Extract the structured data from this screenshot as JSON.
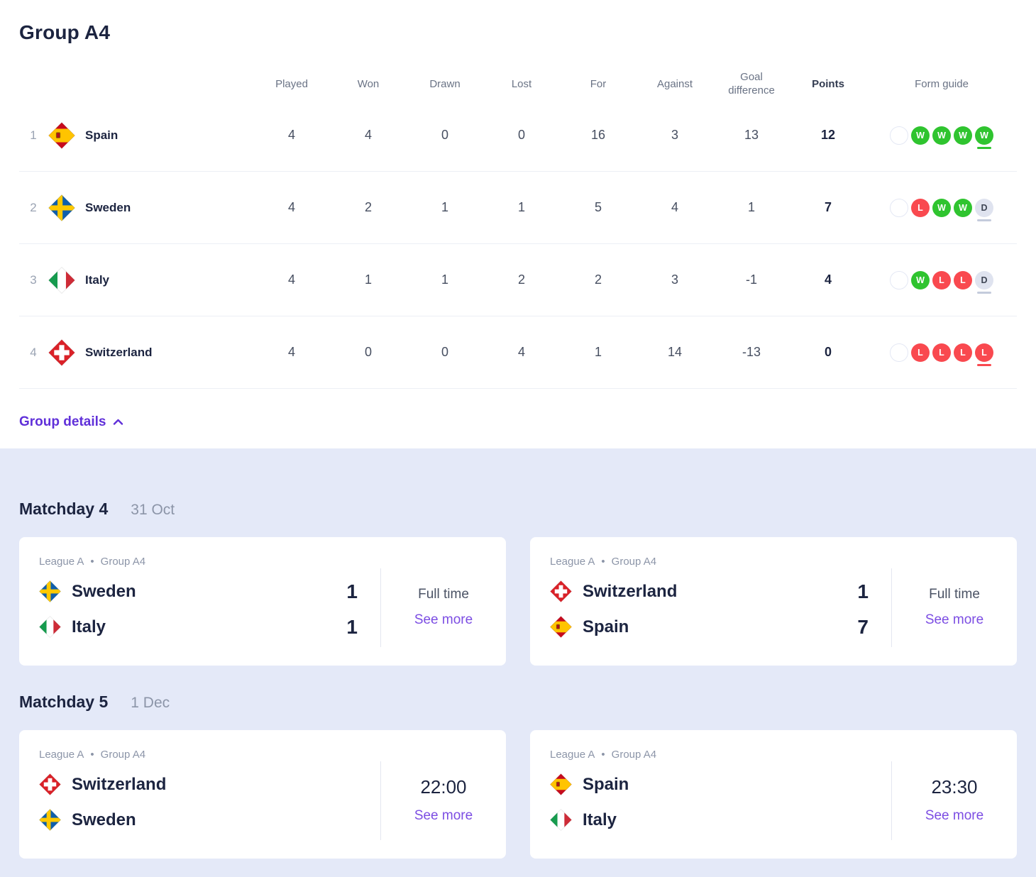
{
  "colors": {
    "navy": "#1C2440",
    "hdr-gray": "#6A7385",
    "stat-gray": "#464E60",
    "rank-gray": "#9AA3B3",
    "date-gray": "#8C95A8",
    "crumb-gray": "#8C95A8",
    "status-gray": "#4A5264",
    "row-line": "#ECEFF5",
    "card-divider": "#E3E6F0",
    "section-bg": "#E4E9F8",
    "purple": "#6030D9",
    "link-purple": "#7C4DE3",
    "win": "#2FC42F",
    "loss": "#F9494F",
    "draw-bg": "#DFE3EF",
    "draw-text": "#3E4554",
    "draw-underline": "#C4CBDC",
    "empty-border": "#E4E8F4"
  },
  "separator": "•",
  "standings": {
    "title": "Group A4",
    "details_label": "Group details",
    "columns": [
      "Played",
      "Won",
      "Drawn",
      "Lost",
      "For",
      "Against",
      "Goal difference",
      "Points",
      "Form guide"
    ],
    "rows": [
      {
        "rank": "1",
        "team": "Spain",
        "flag": "spain",
        "played": "4",
        "won": "4",
        "drawn": "0",
        "lost": "0",
        "for": "16",
        "against": "3",
        "gd": "13",
        "points": "12",
        "form": [
          {
            "r": "",
            "t": "e"
          },
          {
            "r": "W",
            "t": "w"
          },
          {
            "r": "W",
            "t": "w"
          },
          {
            "r": "W",
            "t": "w"
          },
          {
            "r": "W",
            "t": "w",
            "latest": true
          }
        ]
      },
      {
        "rank": "2",
        "team": "Sweden",
        "flag": "sweden",
        "played": "4",
        "won": "2",
        "drawn": "1",
        "lost": "1",
        "for": "5",
        "against": "4",
        "gd": "1",
        "points": "7",
        "form": [
          {
            "r": "",
            "t": "e"
          },
          {
            "r": "L",
            "t": "l"
          },
          {
            "r": "W",
            "t": "w"
          },
          {
            "r": "W",
            "t": "w"
          },
          {
            "r": "D",
            "t": "d",
            "latest": true
          }
        ]
      },
      {
        "rank": "3",
        "team": "Italy",
        "flag": "italy",
        "played": "4",
        "won": "1",
        "drawn": "1",
        "lost": "2",
        "for": "2",
        "against": "3",
        "gd": "-1",
        "points": "4",
        "form": [
          {
            "r": "",
            "t": "e"
          },
          {
            "r": "W",
            "t": "w"
          },
          {
            "r": "L",
            "t": "l"
          },
          {
            "r": "L",
            "t": "l"
          },
          {
            "r": "D",
            "t": "d",
            "latest": true
          }
        ]
      },
      {
        "rank": "4",
        "team": "Switzerland",
        "flag": "switzerland",
        "played": "4",
        "won": "0",
        "drawn": "0",
        "lost": "4",
        "for": "1",
        "against": "14",
        "gd": "-13",
        "points": "0",
        "form": [
          {
            "r": "",
            "t": "e"
          },
          {
            "r": "L",
            "t": "l"
          },
          {
            "r": "L",
            "t": "l"
          },
          {
            "r": "L",
            "t": "l"
          },
          {
            "r": "L",
            "t": "l",
            "latest": true
          }
        ]
      }
    ]
  },
  "matchdays": [
    {
      "title": "Matchday 4",
      "date": "31 Oct",
      "matches": [
        {
          "league": "League A",
          "group": "Group A4",
          "teams": [
            {
              "name": "Sweden",
              "flag": "sweden",
              "score": "1"
            },
            {
              "name": "Italy",
              "flag": "italy",
              "score": "1"
            }
          ],
          "status": "Full time",
          "link": "See more"
        },
        {
          "league": "League A",
          "group": "Group A4",
          "teams": [
            {
              "name": "Switzerland",
              "flag": "switzerland",
              "score": "1"
            },
            {
              "name": "Spain",
              "flag": "spain",
              "score": "7"
            }
          ],
          "status": "Full time",
          "link": "See more"
        }
      ]
    },
    {
      "title": "Matchday 5",
      "date": "1 Dec",
      "matches": [
        {
          "league": "League A",
          "group": "Group A4",
          "teams": [
            {
              "name": "Switzerland",
              "flag": "switzerland"
            },
            {
              "name": "Sweden",
              "flag": "sweden"
            }
          ],
          "time": "22:00",
          "link": "See more"
        },
        {
          "league": "League A",
          "group": "Group A4",
          "teams": [
            {
              "name": "Spain",
              "flag": "spain"
            },
            {
              "name": "Italy",
              "flag": "italy"
            }
          ],
          "time": "23:30",
          "link": "See more"
        }
      ]
    }
  ]
}
